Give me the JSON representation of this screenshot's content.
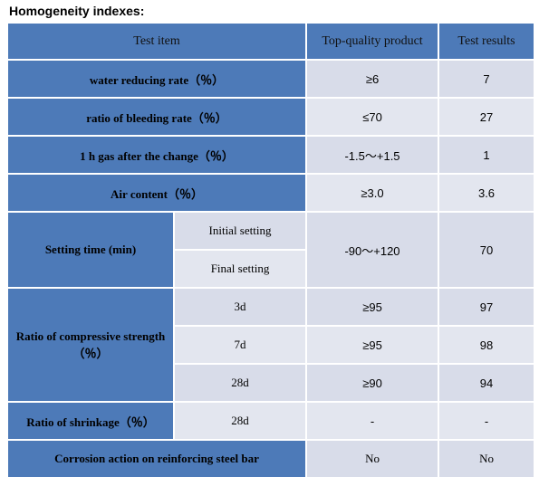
{
  "heading": "Homogeneity indexes:",
  "columns": [
    "Test item",
    "Top-quality product",
    "Test results"
  ],
  "rows": {
    "water_reducing": {
      "item": "water reducing rate（％）",
      "standard": "≥6",
      "result": "7"
    },
    "bleeding": {
      "item": "ratio of bleeding rate（％）",
      "standard": "≤70",
      "result": "27"
    },
    "gas": {
      "item": "1 h gas after the change（％）",
      "standard": "-1.5～+1.5",
      "result": "1"
    },
    "air": {
      "item": "Air content（％）",
      "standard": "≥3.0",
      "result": "3.6"
    },
    "setting": {
      "item": "Setting time (min)",
      "sub1": "Initial setting",
      "sub2": "Final setting",
      "standard": "-90～+120",
      "result": "70"
    },
    "compressive": {
      "item": "Ratio of compressive strength（％）",
      "ages": [
        {
          "age": "3d",
          "standard": "≥95",
          "result": "97"
        },
        {
          "age": "7d",
          "standard": "≥95",
          "result": "98"
        },
        {
          "age": "28d",
          "standard": "≥90",
          "result": "94"
        }
      ]
    },
    "shrinkage": {
      "item": "Ratio of shrinkage（％）",
      "age": "28d",
      "standard": "-",
      "result": "-"
    },
    "corrosion": {
      "item": "Corrosion action on reinforcing steel bar",
      "standard": "No",
      "result": "No"
    }
  }
}
